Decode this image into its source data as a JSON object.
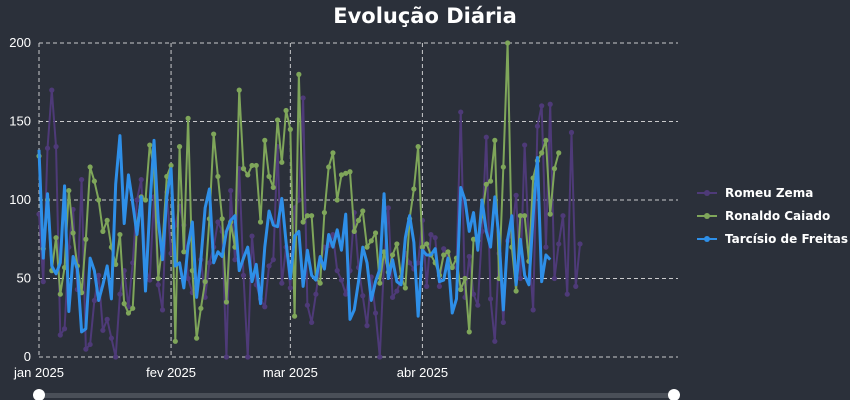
{
  "chart_data": {
    "type": "line",
    "title": "Evolução Diária",
    "xlabel": "",
    "ylabel": "",
    "ylim": [
      0,
      200
    ],
    "y_ticks": [
      0,
      50,
      100,
      150,
      200
    ],
    "x_range": [
      "2025-01-01",
      "2025-05-31"
    ],
    "x_ticks": [
      {
        "date": "2025-01-01",
        "label": "jan 2025"
      },
      {
        "date": "2025-02-01",
        "label": "fev 2025"
      },
      {
        "date": "2025-03-01",
        "label": "mar 2025"
      },
      {
        "date": "2025-04-01",
        "label": "abr 2025"
      }
    ],
    "grid": true,
    "legend_position": "right",
    "range_slider": true,
    "series": [
      {
        "name": "Romeu Zema",
        "color": "#4e3a78",
        "start_date": "2025-01-01",
        "values": [
          91,
          48,
          133,
          170,
          134,
          14,
          18,
          70,
          94,
          43,
          113,
          5,
          8,
          36,
          52,
          17,
          24,
          12,
          0,
          40,
          55,
          32,
          60,
          100,
          113,
          57,
          49,
          102,
          46,
          30,
          105,
          66,
          84,
          96,
          84,
          50,
          41,
          45,
          62,
          38,
          60,
          70,
          86,
          80,
          0,
          106,
          62,
          120,
          52,
          0,
          77,
          46,
          37,
          32,
          58,
          62,
          134,
          47,
          70,
          44,
          95,
          100,
          165,
          33,
          22,
          40,
          60,
          70,
          71,
          78,
          55,
          49,
          40,
          55,
          92,
          57,
          39,
          20,
          51,
          28,
          0,
          61,
          95,
          38,
          42,
          49,
          66,
          60,
          56,
          60,
          87,
          45,
          78,
          76,
          45,
          69,
          65,
          58,
          57,
          156,
          38,
          64,
          40,
          33,
          80,
          140,
          37,
          10,
          66,
          22,
          74,
          78,
          103,
          50,
          135,
          70,
          30,
          147,
          160,
          70,
          161,
          50,
          72,
          90,
          40,
          143,
          45,
          72
        ]
      },
      {
        "name": "Ronaldo Caiado",
        "color": "#7fa65a",
        "start_date": "2025-01-01",
        "values": [
          128,
          69,
          100,
          55,
          76,
          40,
          57,
          106,
          79,
          58,
          41,
          75,
          121,
          112,
          100,
          80,
          87,
          70,
          59,
          78,
          34,
          28,
          31,
          84,
          102,
          100,
          135,
          120,
          50,
          72,
          115,
          122,
          10,
          134,
          67,
          152,
          55,
          12,
          31,
          48,
          88,
          142,
          115,
          88,
          35,
          86,
          70,
          170,
          120,
          116,
          122,
          122,
          86,
          138,
          115,
          108,
          151,
          124,
          157,
          145,
          26,
          180,
          86,
          90,
          90,
          50,
          47,
          92,
          121,
          130,
          100,
          116,
          117,
          118,
          80,
          87,
          93,
          70,
          74,
          79,
          47,
          67,
          54,
          65,
          72,
          51,
          44,
          88,
          107,
          134,
          70,
          72,
          65,
          60,
          52,
          65,
          67,
          57,
          63,
          43,
          50,
          16,
          75,
          74,
          90,
          110,
          112,
          138,
          50,
          121,
          200,
          70,
          42,
          90,
          90,
          61,
          114,
          125,
          130,
          138,
          91,
          120,
          130
        ]
      },
      {
        "name": "Tarcísio de Freitas",
        "color": "#2e8fe8",
        "start_date": "2025-01-01",
        "values": [
          132,
          63,
          104,
          58,
          53,
          60,
          109,
          29,
          64,
          56,
          16,
          18,
          63,
          55,
          36,
          46,
          58,
          37,
          110,
          141,
          85,
          116,
          98,
          78,
          102,
          42,
          95,
          138,
          87,
          62,
          102,
          120,
          58,
          60,
          44,
          71,
          86,
          38,
          62,
          95,
          107,
          60,
          67,
          64,
          80,
          87,
          90,
          55,
          63,
          70,
          48,
          59,
          34,
          70,
          93,
          84,
          83,
          101,
          73,
          50,
          77,
          80,
          45,
          68,
          52,
          49,
          64,
          56,
          78,
          70,
          81,
          68,
          91,
          24,
          30,
          48,
          70,
          60,
          36,
          48,
          56,
          104,
          50,
          62,
          48,
          46,
          76,
          90,
          73,
          26,
          68,
          65,
          65,
          69,
          48,
          49,
          63,
          28,
          37,
          108,
          100,
          80,
          92,
          68,
          100,
          80,
          70,
          102,
          75,
          30,
          75,
          90,
          46,
          75,
          52,
          46,
          90,
          127,
          48,
          65,
          62
        ]
      }
    ]
  }
}
